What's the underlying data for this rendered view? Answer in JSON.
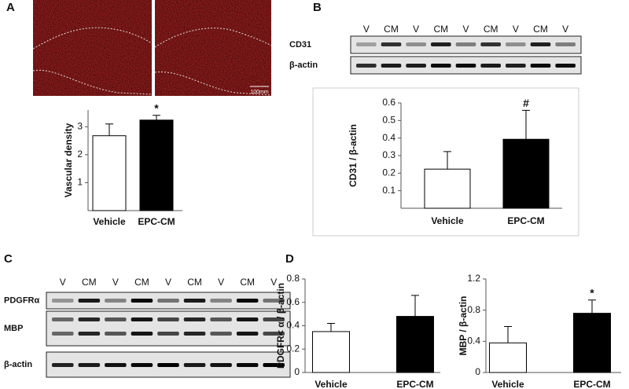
{
  "panels": [
    "A",
    "B",
    "C",
    "D"
  ],
  "micrograph": {
    "scale_label": "100mm"
  },
  "blot_b": {
    "lanes": [
      "V",
      "CM",
      "V",
      "CM",
      "V",
      "CM",
      "V",
      "CM",
      "V"
    ],
    "rows": [
      "CD31",
      "β-actin"
    ]
  },
  "blot_c": {
    "lanes": [
      "V",
      "CM",
      "V",
      "CM",
      "V",
      "CM",
      "V",
      "CM",
      "V"
    ],
    "rows": [
      "PDGFRα",
      "MBP",
      "β-actin"
    ]
  },
  "chart_data": [
    {
      "type": "bar",
      "y_label": "Vascular density",
      "categories": [
        "Vehicle",
        "EPC-CM"
      ],
      "values": [
        2.68,
        3.24
      ],
      "errors": [
        0.42,
        0.17
      ],
      "colors": [
        "#ffffff",
        "#000000"
      ],
      "ylim": [
        0,
        3.6
      ],
      "yticks": [
        1,
        2,
        3
      ],
      "annotation": "*"
    },
    {
      "type": "bar",
      "y_label": "CD31 / β-actin",
      "categories": [
        "Vehicle",
        "EPC-CM"
      ],
      "values": [
        0.223,
        0.393
      ],
      "errors": [
        0.1,
        0.165
      ],
      "colors": [
        "#ffffff",
        "#000000"
      ],
      "ylim": [
        0,
        0.6
      ],
      "yticks": [
        0.1,
        0.2,
        0.3,
        0.4,
        0.5,
        0.6
      ],
      "annotation": "#"
    },
    {
      "type": "bar",
      "y_label": "PDGFR< α / β-actin",
      "categories": [
        "Vehicle",
        "EPC-CM"
      ],
      "values": [
        0.35,
        0.48
      ],
      "errors": [
        0.07,
        0.18
      ],
      "colors": [
        "#ffffff",
        "#000000"
      ],
      "ylim": [
        0,
        0.8
      ],
      "yticks": [
        0,
        0.2,
        0.4,
        0.6,
        0.8
      ]
    },
    {
      "type": "bar",
      "y_label": "MBP / β-actin",
      "categories": [
        "Vehicle",
        "EPC-CM"
      ],
      "values": [
        0.38,
        0.76
      ],
      "errors": [
        0.21,
        0.17
      ],
      "colors": [
        "#ffffff",
        "#000000"
      ],
      "ylim": [
        0,
        1.2
      ],
      "yticks": [
        0,
        0.4,
        0.8,
        1.2
      ],
      "annotation": "*"
    }
  ]
}
